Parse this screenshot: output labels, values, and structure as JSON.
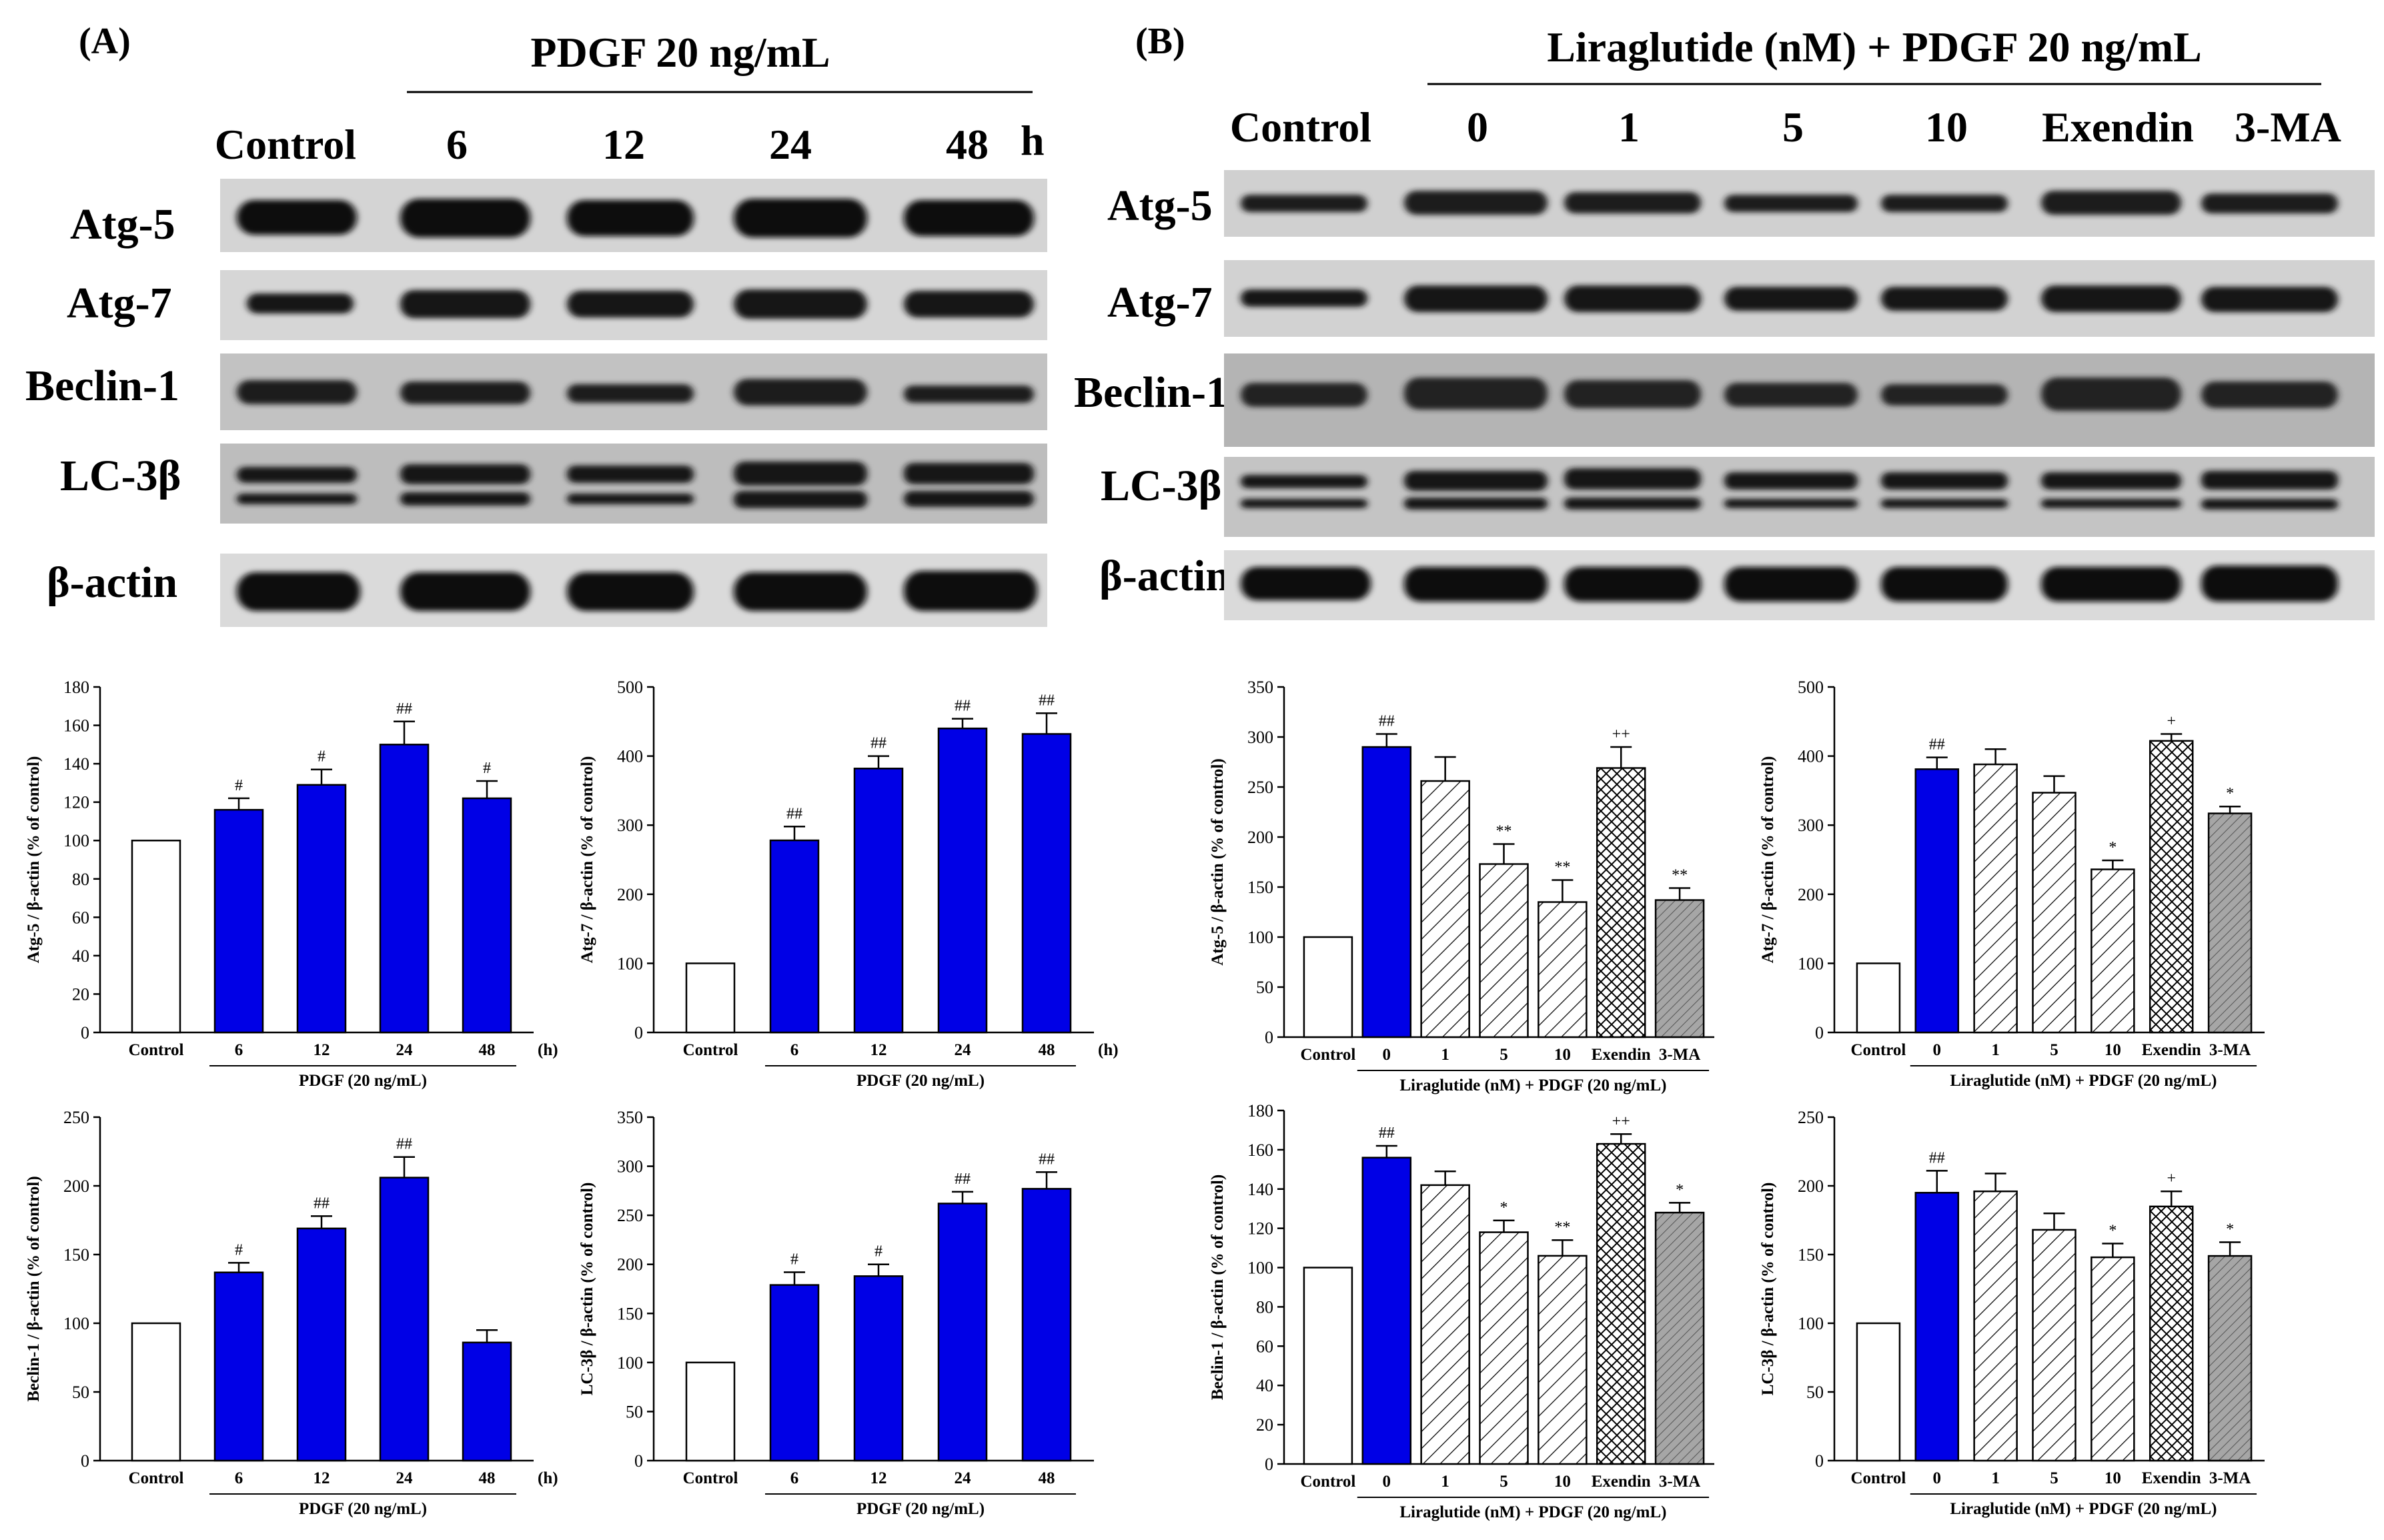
{
  "panel_a": {
    "label": "(A)",
    "header": "PDGF 20 ng/mL",
    "lanes": [
      "Control",
      "6",
      "12",
      "24",
      "48"
    ],
    "unit": "h",
    "rows": [
      "Atg-5",
      "Atg-7",
      "Beclin-1",
      "LC-3β",
      "β-actin"
    ]
  },
  "panel_b": {
    "label": "(B)",
    "header": "Liraglutide (nM) + PDGF 20 ng/mL",
    "lanes": [
      "Control",
      "0",
      "1",
      "5",
      "10",
      "Exendin",
      "3-MA"
    ],
    "rows": [
      "Atg-5",
      "Atg-7",
      "Beclin-1",
      "LC-3β",
      "β-actin"
    ]
  },
  "colors": {
    "blue": "#0000e6",
    "axis": "#000000",
    "bar_white": "#ffffff",
    "hatch_gray": "#a6a6a6"
  },
  "chart_data": [
    {
      "type": "bar",
      "title": "",
      "ylabel": "Atg-5 / β-actin (% of control)",
      "ylim": [
        0,
        180
      ],
      "yticks": [
        0,
        20,
        40,
        60,
        80,
        100,
        120,
        140,
        160,
        180
      ],
      "categories": [
        "Control",
        "6",
        "12",
        "24",
        "48"
      ],
      "unit": "(h)",
      "group_label": "PDGF (20 ng/mL)",
      "values": [
        100,
        116,
        129,
        150,
        122
      ],
      "errors": [
        0,
        6,
        8,
        12,
        9
      ],
      "annotations": [
        "",
        "#",
        "#",
        "##",
        "#"
      ],
      "fills": [
        "white",
        "blue",
        "blue",
        "blue",
        "blue"
      ]
    },
    {
      "type": "bar",
      "title": "",
      "ylabel": "Atg-7 / β-actin (% of control)",
      "ylim": [
        0,
        500
      ],
      "yticks": [
        0,
        100,
        200,
        300,
        400,
        500
      ],
      "categories": [
        "Control",
        "6",
        "12",
        "24",
        "48"
      ],
      "unit": "(h)",
      "group_label": "PDGF (20 ng/mL)",
      "values": [
        100,
        278,
        382,
        440,
        432
      ],
      "errors": [
        0,
        20,
        18,
        14,
        30
      ],
      "annotations": [
        "",
        "##",
        "##",
        "##",
        "##"
      ],
      "fills": [
        "white",
        "blue",
        "blue",
        "blue",
        "blue"
      ]
    },
    {
      "type": "bar",
      "title": "",
      "ylabel": "Atg-5 / β-actin (% of control)",
      "ylim": [
        0,
        350
      ],
      "yticks": [
        0,
        50,
        100,
        150,
        200,
        250,
        300,
        350
      ],
      "categories": [
        "Control",
        "0",
        "1",
        "5",
        "10",
        "Exendin",
        "3-MA"
      ],
      "group_label": "Liraglutide (nM) + PDGF (20 ng/mL)",
      "values": [
        100,
        290,
        256,
        173,
        135,
        269,
        137
      ],
      "errors": [
        0,
        13,
        24,
        20,
        22,
        21,
        12
      ],
      "annotations": [
        "",
        "##",
        "",
        "**",
        "**",
        "++",
        "**"
      ],
      "fills": [
        "white",
        "blue",
        "diag",
        "diag",
        "diag",
        "cross",
        "gray"
      ]
    },
    {
      "type": "bar",
      "title": "",
      "ylabel": "Atg-7 / β-actin (% of control)",
      "ylim": [
        0,
        500
      ],
      "yticks": [
        0,
        100,
        200,
        300,
        400,
        500
      ],
      "categories": [
        "Control",
        "0",
        "1",
        "5",
        "10",
        "Exendin",
        "3-MA"
      ],
      "group_label": "Liraglutide (nM) + PDGF (20 ng/mL)",
      "values": [
        100,
        381,
        388,
        347,
        236,
        422,
        317
      ],
      "errors": [
        0,
        17,
        22,
        24,
        13,
        10,
        10
      ],
      "annotations": [
        "",
        "##",
        "",
        "",
        "*",
        "+",
        "*"
      ],
      "fills": [
        "white",
        "blue",
        "diag",
        "diag",
        "diag",
        "cross",
        "gray"
      ]
    },
    {
      "type": "bar",
      "title": "",
      "ylabel": "Beclin-1 / β-actin (% of control)",
      "ylim": [
        0,
        250
      ],
      "yticks": [
        0,
        50,
        100,
        150,
        200,
        250
      ],
      "categories": [
        "Control",
        "6",
        "12",
        "24",
        "48"
      ],
      "unit": "(h)",
      "group_label": "PDGF (20 ng/mL)",
      "values": [
        100,
        137,
        169,
        206,
        86
      ],
      "errors": [
        0,
        7,
        9,
        15,
        9
      ],
      "annotations": [
        "",
        "#",
        "##",
        "##",
        ""
      ],
      "fills": [
        "white",
        "blue",
        "blue",
        "blue",
        "blue"
      ]
    },
    {
      "type": "bar",
      "title": "",
      "ylabel": "LC-3β / β-actin (% of control)",
      "ylim": [
        0,
        350
      ],
      "yticks": [
        0,
        50,
        100,
        150,
        200,
        250,
        300,
        350
      ],
      "categories": [
        "Control",
        "6",
        "12",
        "24",
        "48"
      ],
      "group_label": "PDGF (20 ng/mL)",
      "values": [
        100,
        179,
        188,
        262,
        277
      ],
      "errors": [
        0,
        13,
        12,
        12,
        17
      ],
      "annotations": [
        "",
        "#",
        "#",
        "##",
        "##"
      ],
      "fills": [
        "white",
        "blue",
        "blue",
        "blue",
        "blue"
      ]
    },
    {
      "type": "bar",
      "title": "",
      "ylabel": "Beclin-1 / β-actin (% of control)",
      "ylim": [
        0,
        180
      ],
      "yticks": [
        0,
        20,
        40,
        60,
        80,
        100,
        120,
        140,
        160,
        180
      ],
      "categories": [
        "Control",
        "0",
        "1",
        "5",
        "10",
        "Exendin",
        "3-MA"
      ],
      "group_label": "Liraglutide (nM) + PDGF (20 ng/mL)",
      "values": [
        100,
        156,
        142,
        118,
        106,
        163,
        128
      ],
      "errors": [
        0,
        6,
        7,
        6,
        8,
        5,
        5
      ],
      "annotations": [
        "",
        "##",
        "",
        "*",
        "**",
        "++",
        "*"
      ],
      "fills": [
        "white",
        "blue",
        "diag",
        "diag",
        "diag",
        "cross",
        "gray"
      ]
    },
    {
      "type": "bar",
      "title": "",
      "ylabel": "LC-3β / β-actin (% of control)",
      "ylim": [
        0,
        250
      ],
      "yticks": [
        0,
        50,
        100,
        150,
        200,
        250
      ],
      "categories": [
        "Control",
        "0",
        "1",
        "5",
        "10",
        "Exendin",
        "3-MA"
      ],
      "group_label": "Liraglutide (nM) + PDGF (20 ng/mL)",
      "values": [
        100,
        195,
        196,
        168,
        148,
        185,
        149
      ],
      "errors": [
        0,
        16,
        13,
        12,
        10,
        11,
        10
      ],
      "annotations": [
        "",
        "##",
        "",
        "",
        "*",
        "+",
        "*"
      ],
      "fills": [
        "white",
        "blue",
        "diag",
        "diag",
        "diag",
        "cross",
        "gray"
      ]
    }
  ]
}
